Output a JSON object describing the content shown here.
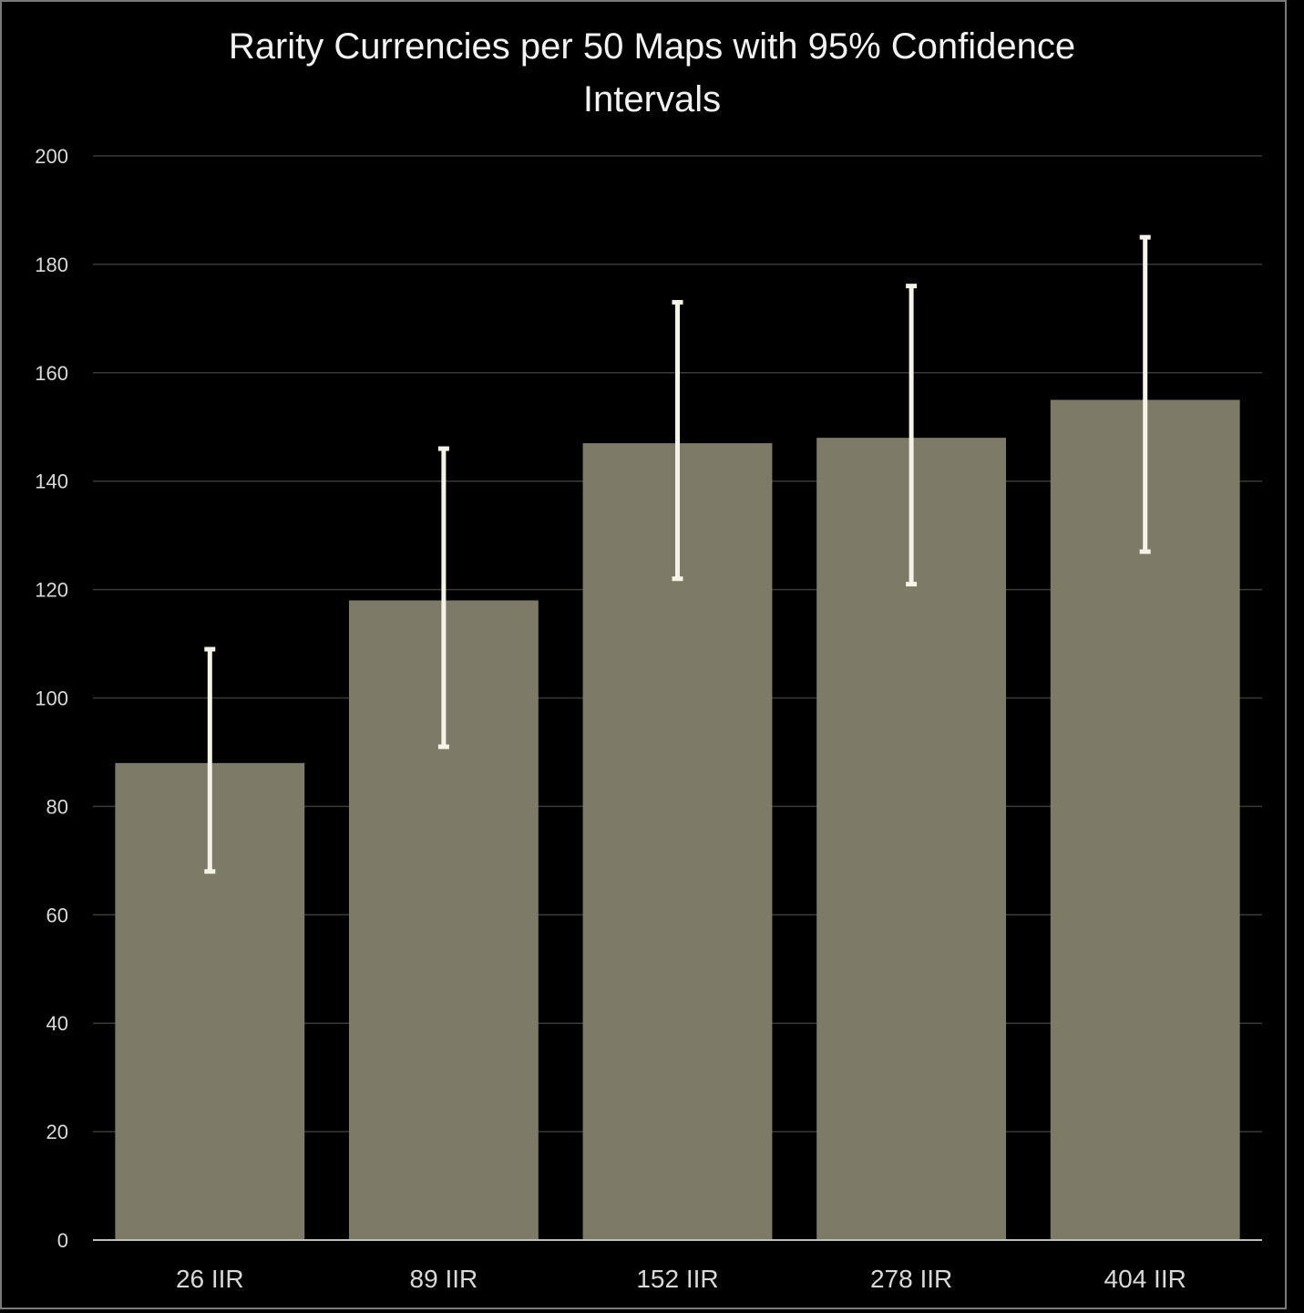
{
  "chart_data": {
    "type": "bar",
    "title_lines": [
      "Rarity Currencies per 50 Maps with 95% Confidence",
      "Intervals"
    ],
    "xlabel": "",
    "ylabel": "",
    "ylim": [
      0,
      200
    ],
    "yticks": [
      0,
      20,
      40,
      60,
      80,
      100,
      120,
      140,
      160,
      180,
      200
    ],
    "grid": true,
    "categories": [
      "26 IIR",
      "89 IIR",
      "152 IIR",
      "278 IIR",
      "404 IIR"
    ],
    "values": [
      88,
      118,
      147,
      148,
      155
    ],
    "error_low": [
      68,
      91,
      122,
      121,
      127
    ],
    "error_high": [
      109,
      146,
      173,
      176,
      185
    ],
    "colors": {
      "bar": "#7d7b68",
      "error_bar": "#f5f3e6",
      "grid": "#3a3a3a",
      "axis": "#bfbfbf"
    }
  }
}
